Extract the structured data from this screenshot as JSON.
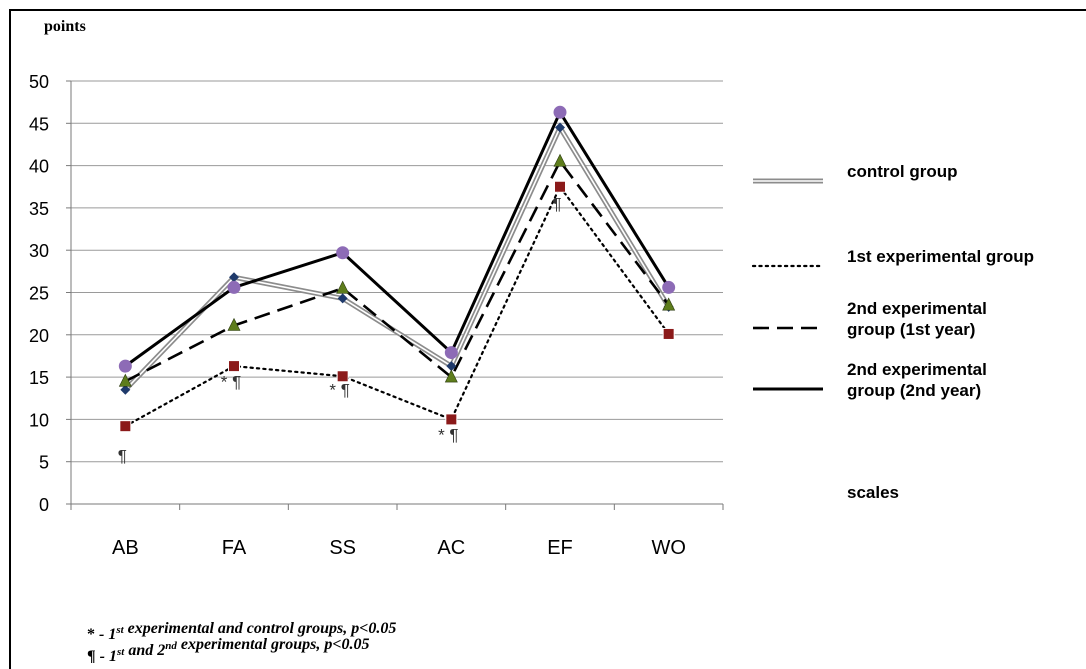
{
  "chart_data": {
    "type": "line",
    "ylabel": "points",
    "xlabel": "scales",
    "categories": [
      "AB",
      "FA",
      "SS",
      "AC",
      "EF",
      "WO"
    ],
    "ylim": [
      0,
      50
    ],
    "yticks": [
      0,
      5,
      10,
      15,
      20,
      25,
      30,
      35,
      40,
      45,
      50
    ],
    "grid": true,
    "legend_position": "right",
    "series": [
      {
        "name": "control group",
        "style": "double",
        "color": "#8c8c8c",
        "marker": "diamond",
        "marker_color": "#1f3a6b",
        "values": [
          13.5,
          26.8,
          24.3,
          16.3,
          44.5,
          23.3
        ]
      },
      {
        "name": "1st experimental group",
        "style": "dotted",
        "color": "#000000",
        "marker": "square",
        "marker_color": "#8b1a1a",
        "values": [
          9.2,
          16.3,
          15.1,
          10.0,
          37.5,
          20.1
        ]
      },
      {
        "name": "2nd experimental group (1st year)",
        "style": "dashed",
        "color": "#000000",
        "marker": "triangle",
        "marker_color": "#5e7d1c",
        "values": [
          14.5,
          21.1,
          25.5,
          15.0,
          40.5,
          23.5
        ]
      },
      {
        "name": "2nd experimental group (2nd year)",
        "style": "solid",
        "color": "#000000",
        "marker": "circle",
        "marker_color": "#8d6bb6",
        "values": [
          16.3,
          25.6,
          29.7,
          17.9,
          46.3,
          25.6
        ]
      }
    ],
    "legend_labels": [
      [
        "control group"
      ],
      [
        "1st experimental group"
      ],
      [
        "2nd experimental",
        "group (1st year)"
      ],
      [
        "2nd experimental",
        "group (2nd year)"
      ]
    ],
    "annotations": [
      {
        "category": "AB",
        "y": 5.0,
        "text": "¶"
      },
      {
        "category": "FA",
        "y": 13.8,
        "text": "* ¶"
      },
      {
        "category": "SS",
        "y": 12.8,
        "text": "* ¶"
      },
      {
        "category": "AC",
        "y": 7.5,
        "text": "* ¶"
      },
      {
        "category": "EF",
        "y": 34.8,
        "text": "¶"
      }
    ],
    "footnotes": [
      {
        "symbol": "*",
        "parts": [
          [
            "- 1",
            ""
          ],
          [
            "st",
            "sup"
          ],
          [
            " experimental and control groups, p<0.05",
            ""
          ]
        ]
      },
      {
        "symbol": "¶",
        "parts": [
          [
            "- 1",
            ""
          ],
          [
            "st",
            "sup"
          ],
          [
            " and 2",
            ""
          ],
          [
            "nd",
            "sup"
          ],
          [
            " experimental groups, p<0.05",
            ""
          ]
        ]
      }
    ]
  }
}
